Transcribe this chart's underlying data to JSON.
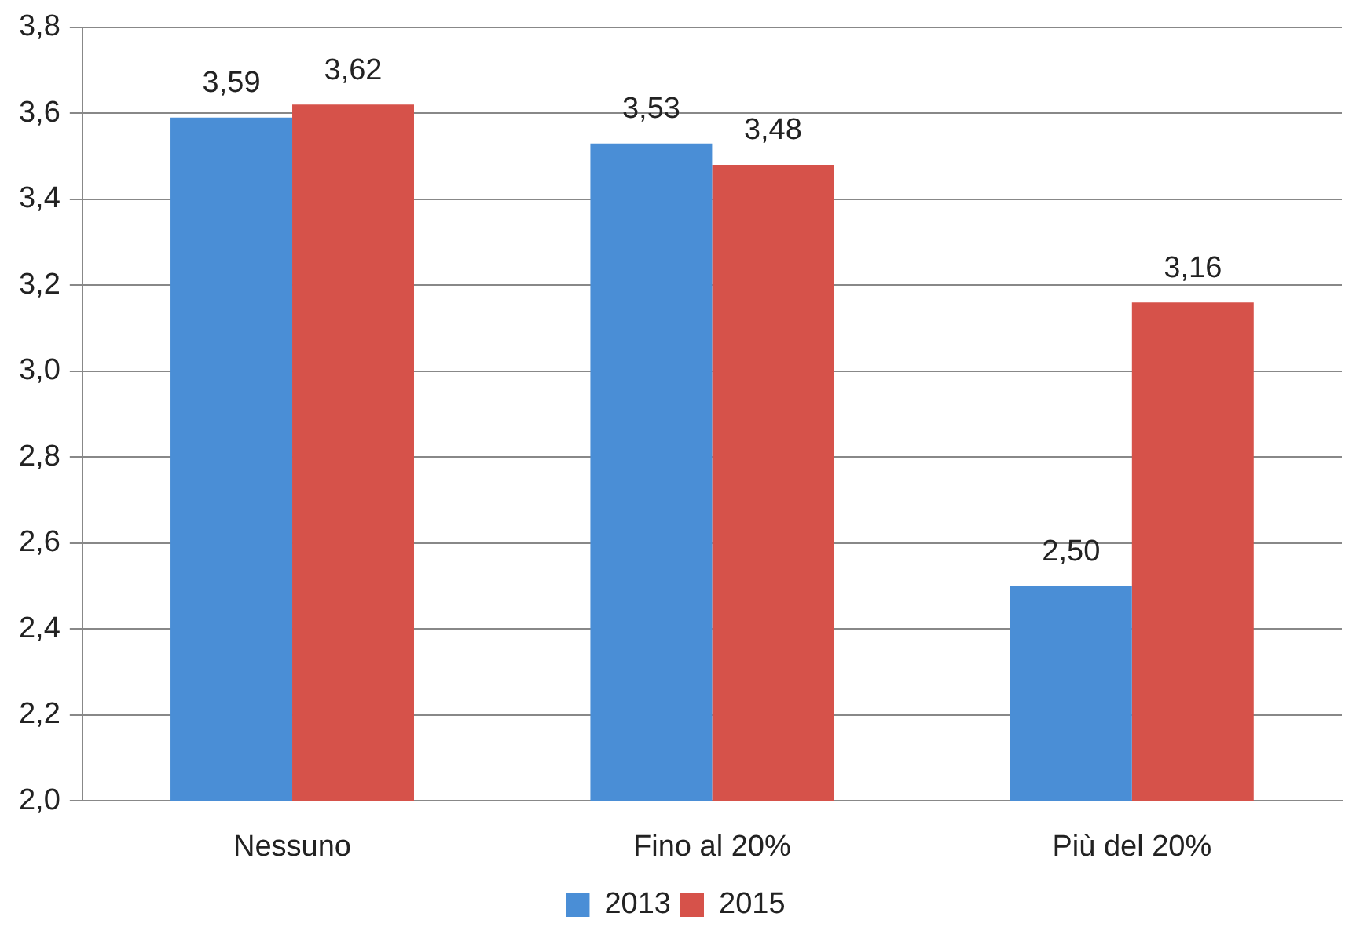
{
  "chart_data": {
    "type": "bar",
    "categories": [
      "Nessuno",
      "Fino al 20%",
      "Più del 20%"
    ],
    "series": [
      {
        "name": "2013",
        "color": "#4a8ed6",
        "values": [
          3.59,
          3.53,
          2.5
        ],
        "value_labels": [
          "3,59",
          "3,53",
          "2,50"
        ]
      },
      {
        "name": "2015",
        "color": "#d6524a",
        "values": [
          3.62,
          3.48,
          3.16
        ],
        "value_labels": [
          "3,62",
          "3,48",
          "3,16"
        ]
      }
    ],
    "ylim": [
      2.0,
      3.8
    ],
    "yticks": [
      {
        "value": 2.0,
        "label": "2,0"
      },
      {
        "value": 2.2,
        "label": "2,2"
      },
      {
        "value": 2.4,
        "label": "2,4"
      },
      {
        "value": 2.6,
        "label": "2,6"
      },
      {
        "value": 2.8,
        "label": "2,8"
      },
      {
        "value": 3.0,
        "label": "3,0"
      },
      {
        "value": 3.2,
        "label": "3,2"
      },
      {
        "value": 3.4,
        "label": "3,4"
      },
      {
        "value": 3.6,
        "label": "3,6"
      },
      {
        "value": 3.8,
        "label": "3,8"
      }
    ],
    "grid": "y",
    "legend": "bottom"
  }
}
